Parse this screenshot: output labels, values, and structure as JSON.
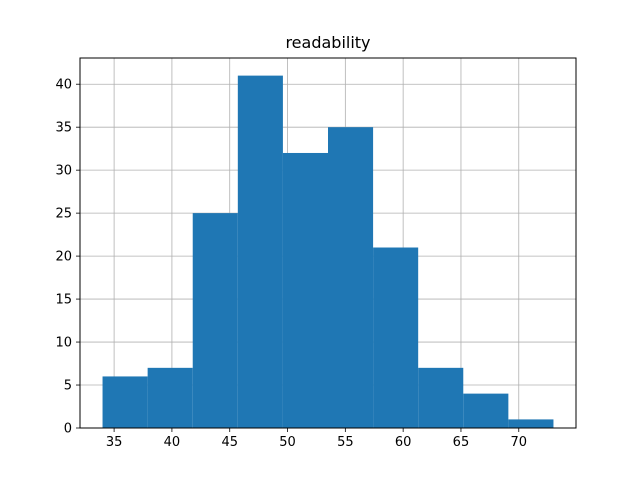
{
  "chart_data": {
    "type": "bar",
    "title": "readability",
    "xlabel": "",
    "ylabel": "",
    "bins": [
      {
        "x0": 34.0,
        "x1": 37.9,
        "count": 6
      },
      {
        "x0": 37.9,
        "x1": 41.8,
        "count": 7
      },
      {
        "x0": 41.8,
        "x1": 45.7,
        "count": 25
      },
      {
        "x0": 45.7,
        "x1": 49.6,
        "count": 41
      },
      {
        "x0": 49.6,
        "x1": 53.5,
        "count": 32
      },
      {
        "x0": 53.5,
        "x1": 57.4,
        "count": 35
      },
      {
        "x0": 57.4,
        "x1": 61.3,
        "count": 21
      },
      {
        "x0": 61.3,
        "x1": 65.2,
        "count": 7
      },
      {
        "x0": 65.2,
        "x1": 69.1,
        "count": 4
      },
      {
        "x0": 69.1,
        "x1": 73.0,
        "count": 1
      }
    ],
    "xlim": [
      32.05,
      74.95
    ],
    "ylim": [
      0,
      43.05
    ],
    "x_ticks": [
      35,
      40,
      45,
      50,
      55,
      60,
      65,
      70
    ],
    "y_ticks": [
      0,
      5,
      10,
      15,
      20,
      25,
      30,
      35,
      40
    ],
    "grid": true,
    "bar_color": "#1f77b4"
  }
}
